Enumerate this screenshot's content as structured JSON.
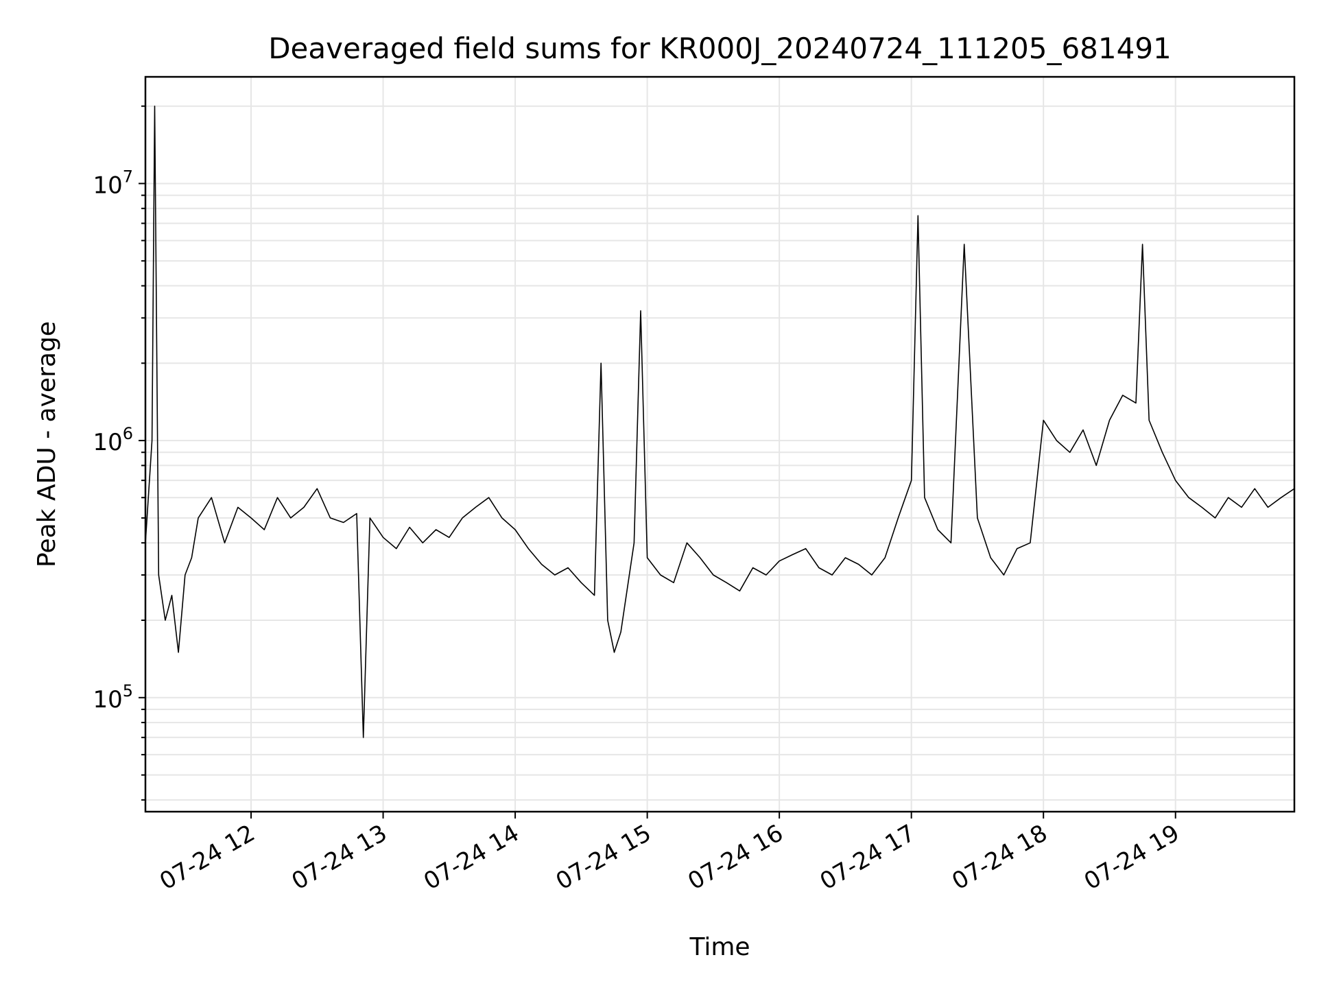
{
  "chart_data": {
    "type": "line",
    "title": "Deaveraged field sums for KR000J_20240724_111205_681491",
    "xlabel": "Time",
    "ylabel": "Peak ADU - average",
    "yscale": "log",
    "ylim": [
      36000,
      26000000
    ],
    "xlim_hours": [
      11.2,
      19.9
    ],
    "grid": true,
    "legend": "none",
    "line_color": "#000000",
    "x_ticks": [
      {
        "hour": 12,
        "label": "07-24 12"
      },
      {
        "hour": 13,
        "label": "07-24 13"
      },
      {
        "hour": 14,
        "label": "07-24 14"
      },
      {
        "hour": 15,
        "label": "07-24 15"
      },
      {
        "hour": 16,
        "label": "07-24 16"
      },
      {
        "hour": 17,
        "label": "07-24 17"
      },
      {
        "hour": 18,
        "label": "07-24 18"
      },
      {
        "hour": 19,
        "label": "07-24 19"
      }
    ],
    "y_ticks": [
      {
        "value": 100000,
        "base": "10",
        "exp": "5"
      },
      {
        "value": 1000000,
        "base": "10",
        "exp": "6"
      },
      {
        "value": 10000000,
        "base": "10",
        "exp": "7"
      }
    ],
    "series": [
      {
        "x_hours": [
          11.2,
          11.25,
          11.27,
          11.3,
          11.35,
          11.4,
          11.45,
          11.5,
          11.55,
          11.6,
          11.7,
          11.8,
          11.9,
          12.0,
          12.1,
          12.2,
          12.3,
          12.4,
          12.5,
          12.6,
          12.7,
          12.8,
          12.85,
          12.9,
          13.0,
          13.1,
          13.2,
          13.3,
          13.4,
          13.5,
          13.6,
          13.7,
          13.8,
          13.9,
          14.0,
          14.1,
          14.2,
          14.3,
          14.4,
          14.5,
          14.6,
          14.65,
          14.7,
          14.75,
          14.8,
          14.9,
          14.95,
          15.0,
          15.1,
          15.2,
          15.3,
          15.4,
          15.5,
          15.6,
          15.7,
          15.8,
          15.9,
          16.0,
          16.1,
          16.2,
          16.3,
          16.4,
          16.5,
          16.6,
          16.7,
          16.8,
          16.9,
          17.0,
          17.05,
          17.1,
          17.2,
          17.3,
          17.4,
          17.5,
          17.6,
          17.7,
          17.8,
          17.9,
          18.0,
          18.1,
          18.2,
          18.3,
          18.4,
          18.5,
          18.6,
          18.7,
          18.75,
          18.8,
          18.9,
          19.0,
          19.1,
          19.2,
          19.3,
          19.4,
          19.5,
          19.6,
          19.7,
          19.8,
          19.9
        ],
        "y": [
          400000,
          1000000,
          20000000,
          300000,
          200000,
          250000,
          150000,
          300000,
          350000,
          500000,
          600000,
          400000,
          550000,
          500000,
          450000,
          600000,
          500000,
          550000,
          650000,
          500000,
          480000,
          520000,
          70000,
          500000,
          420000,
          380000,
          460000,
          400000,
          450000,
          420000,
          500000,
          550000,
          600000,
          500000,
          450000,
          380000,
          330000,
          300000,
          320000,
          280000,
          250000,
          2000000,
          200000,
          150000,
          180000,
          400000,
          3200000,
          350000,
          300000,
          280000,
          400000,
          350000,
          300000,
          280000,
          260000,
          320000,
          300000,
          340000,
          360000,
          380000,
          320000,
          300000,
          350000,
          330000,
          300000,
          350000,
          500000,
          700000,
          7500000,
          600000,
          450000,
          400000,
          5800000,
          500000,
          350000,
          300000,
          380000,
          400000,
          1200000,
          1000000,
          900000,
          1100000,
          800000,
          1200000,
          1500000,
          1400000,
          5800000,
          1200000,
          900000,
          700000,
          600000,
          550000,
          500000,
          600000,
          550000,
          650000,
          550000,
          600000,
          650000
        ]
      }
    ]
  }
}
